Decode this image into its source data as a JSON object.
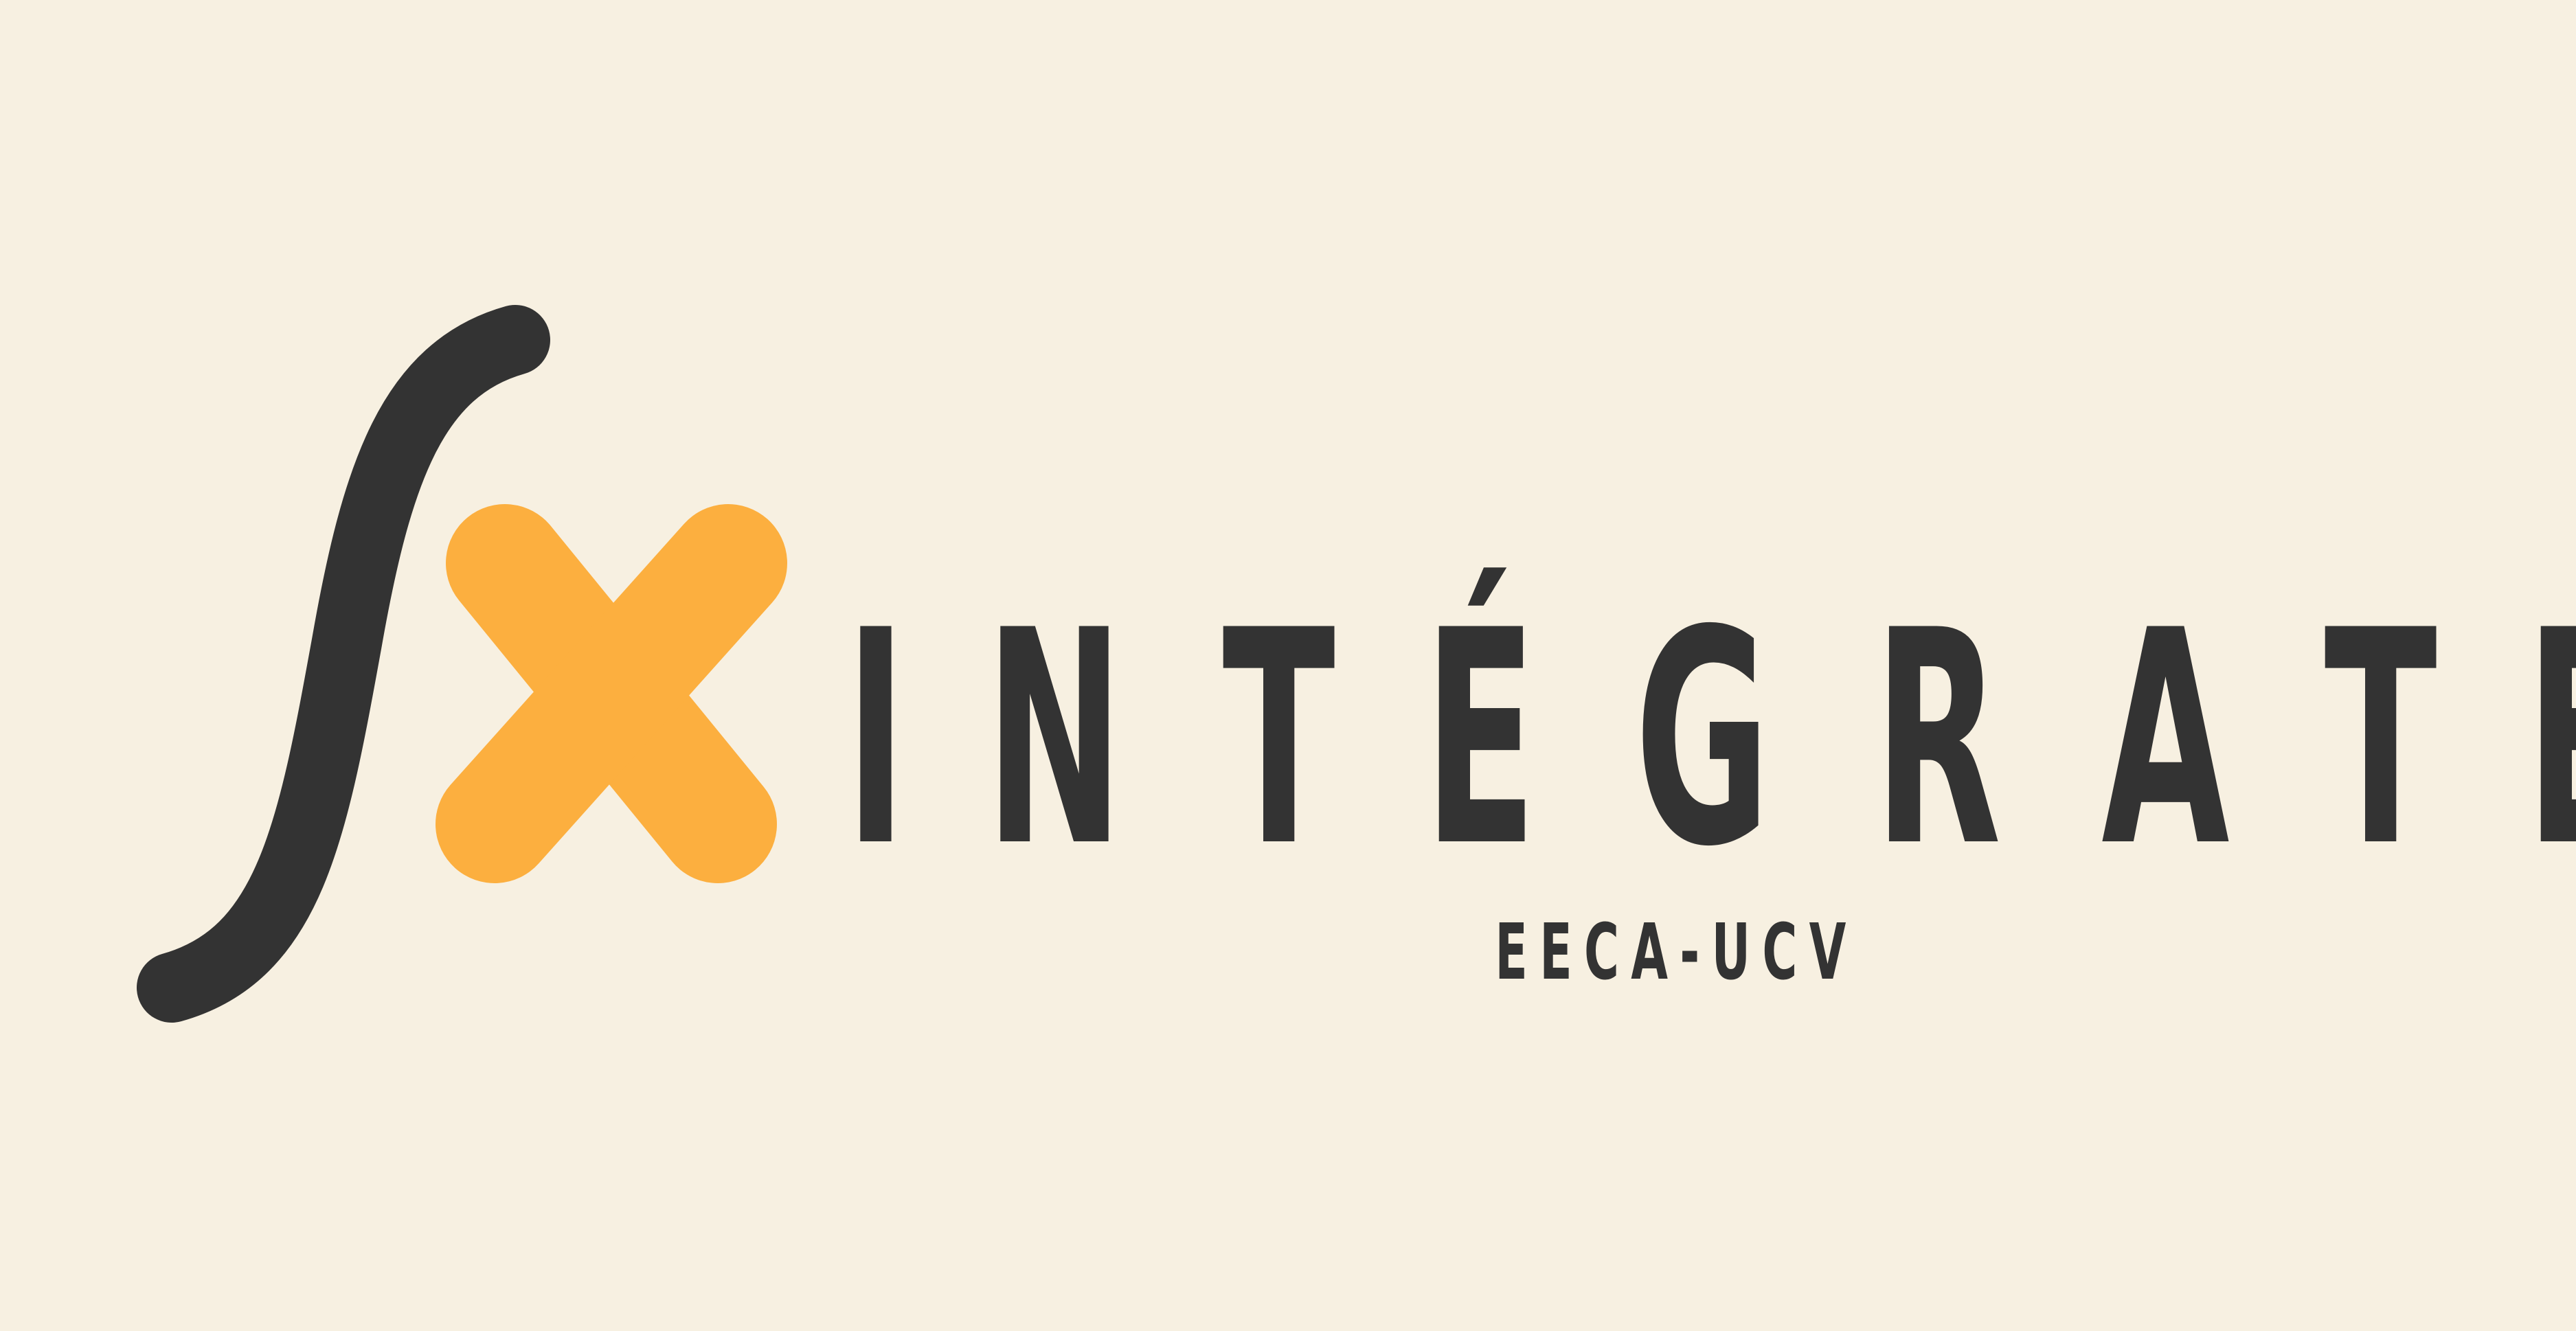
{
  "brand": {
    "name_letters": [
      "I",
      "N",
      "T",
      "É",
      "G",
      "R",
      "A",
      "T",
      "E"
    ],
    "tagline": "EECA-UCV",
    "mark": {
      "icon": "integral-x-icon",
      "integral_color": "#333333",
      "x_color": "#FCAF3F"
    }
  },
  "colors": {
    "background": "#F7F0E1",
    "text": "#333333",
    "accent": "#FCAF3F"
  }
}
